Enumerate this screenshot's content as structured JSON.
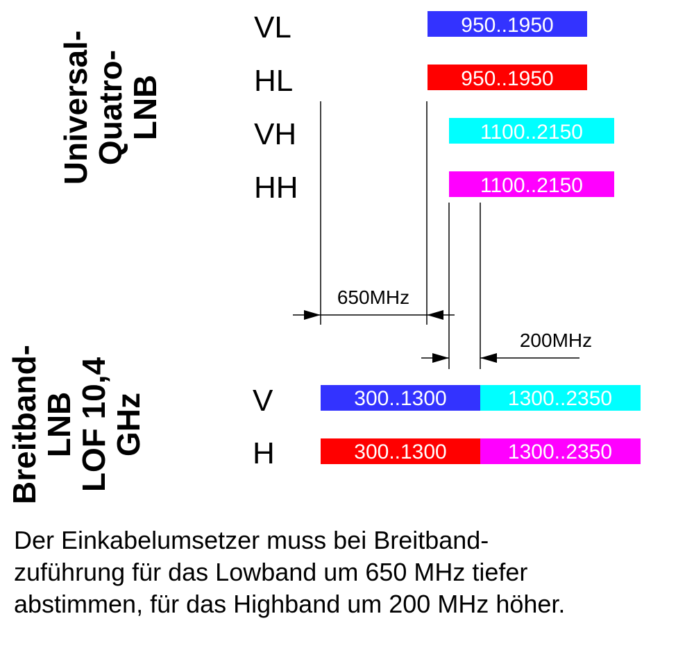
{
  "universal_lnb": {
    "title_lines": [
      "Universal-",
      "Quatro-",
      "LNB"
    ],
    "bands": [
      {
        "name": "VL",
        "range": "950..1950",
        "start_mhz": 950,
        "end_mhz": 1950,
        "color": "#3333ff"
      },
      {
        "name": "HL",
        "range": "950..1950",
        "start_mhz": 950,
        "end_mhz": 1950,
        "color": "#ff0000"
      },
      {
        "name": "VH",
        "range": "1100..2150",
        "start_mhz": 1100,
        "end_mhz": 2150,
        "color": "#00ffff"
      },
      {
        "name": "HH",
        "range": "1100..2150",
        "start_mhz": 1100,
        "end_mhz": 2150,
        "color": "#ff00ff"
      }
    ]
  },
  "wideband_lnb": {
    "title_lines": [
      "Breitband-",
      "LNB",
      "LOF 10,4",
      "GHz"
    ],
    "bands": [
      {
        "name": "V",
        "segments": [
          {
            "range": "300..1300",
            "start_mhz": 300,
            "end_mhz": 1300,
            "color": "#3333ff"
          },
          {
            "range": "1300..2350",
            "start_mhz": 1300,
            "end_mhz": 2350,
            "color": "#00ffff"
          }
        ]
      },
      {
        "name": "H",
        "segments": [
          {
            "range": "300..1300",
            "start_mhz": 300,
            "end_mhz": 1300,
            "color": "#ff0000"
          },
          {
            "range": "1300..2350",
            "start_mhz": 1300,
            "end_mhz": 2350,
            "color": "#ff00ff"
          }
        ]
      }
    ]
  },
  "dimensions": {
    "lowband_shift": "650MHz",
    "highband_shift": "200MHz"
  },
  "caption": {
    "lines": [
      "Der Einkabelumsetzer muss bei Breitband-",
      "zuführung für das Lowband um 650 MHz tiefer",
      "abstimmen, für das Highband um 200 MHz höher."
    ]
  }
}
